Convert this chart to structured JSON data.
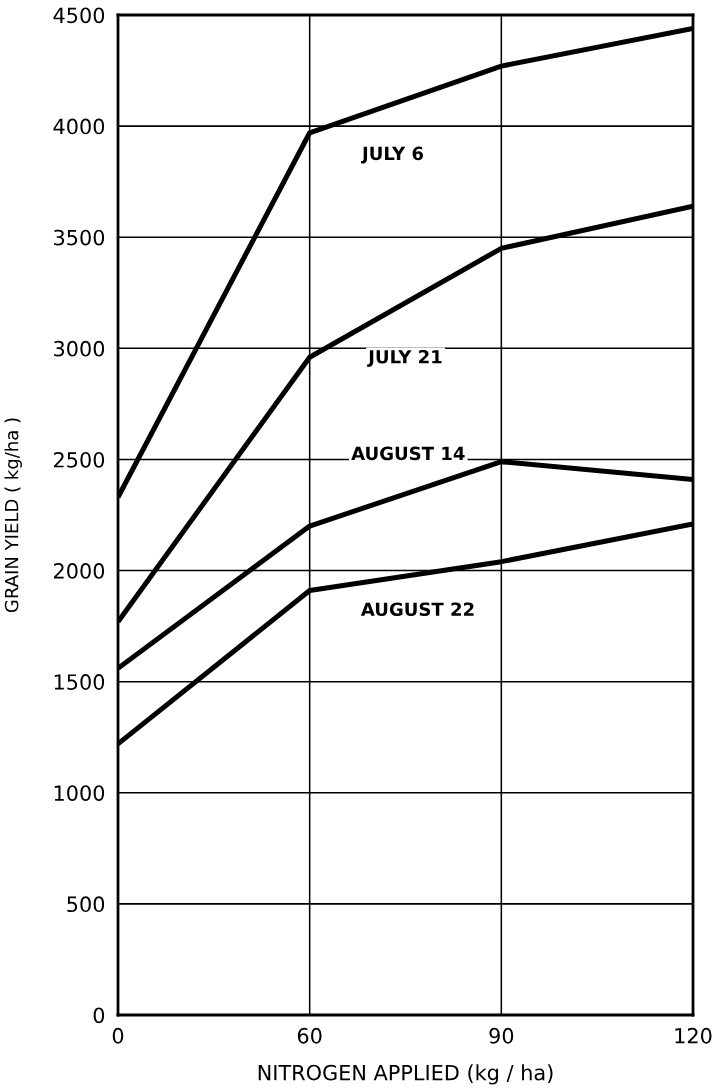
{
  "chart_data": {
    "type": "line",
    "xlabel": "NITROGEN APPLIED (kg / ha)",
    "ylabel": "GRAIN YIELD ( kg/ha )",
    "categories": [
      "0",
      "60",
      "90",
      "120"
    ],
    "series": [
      {
        "name": "JULY 6",
        "color": "#000000",
        "values": [
          2330,
          3970,
          4270,
          4440
        ]
      },
      {
        "name": "JULY 21",
        "color": "#000000",
        "values": [
          1770,
          2960,
          3450,
          3640
        ]
      },
      {
        "name": "AUGUST 14",
        "color": "#000000",
        "values": [
          1560,
          2200,
          2490,
          2410
        ]
      },
      {
        "name": "AUGUST 22",
        "color": "#000000",
        "values": [
          1220,
          1910,
          2040,
          2210
        ]
      }
    ],
    "ylim": [
      0,
      4500
    ],
    "yticks": [
      0,
      500,
      1000,
      1500,
      2000,
      2500,
      3000,
      3500,
      4000,
      4500
    ],
    "grid": true,
    "line_style": "solid"
  }
}
